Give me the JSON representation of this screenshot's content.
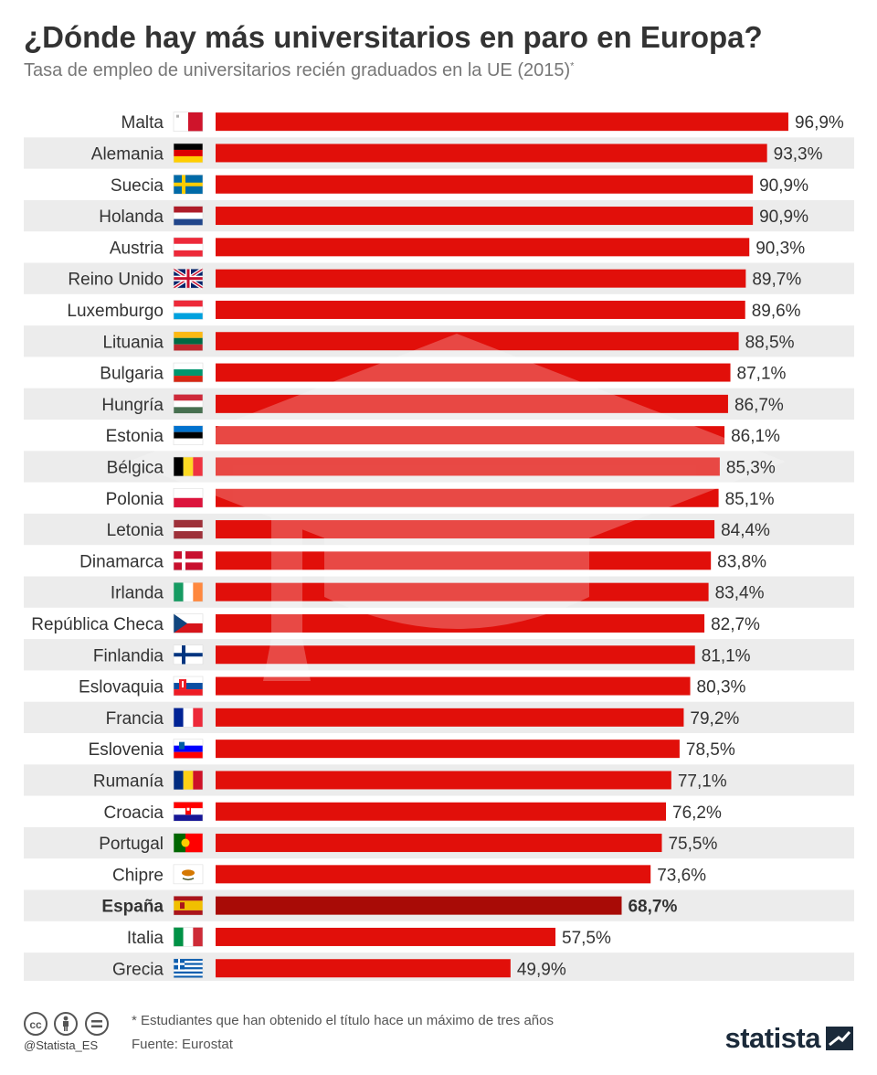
{
  "header": {
    "title": "¿Dónde hay más universitarios en paro en Europa?",
    "subtitle": "Tasa de empleo de universitarios recién graduados en la UE (2015)",
    "subtitle_mark": "*"
  },
  "chart_data": {
    "type": "bar",
    "orientation": "horizontal",
    "title": "¿Dónde hay más universitarios en paro en Europa?",
    "subtitle": "Tasa de empleo de universitarios recién graduados en la UE (2015)*",
    "categories": [
      "Malta",
      "Alemania",
      "Suecia",
      "Holanda",
      "Austria",
      "Reino Unido",
      "Luxemburgo",
      "Lituania",
      "Bulgaria",
      "Hungría",
      "Estonia",
      "Bélgica",
      "Polonia",
      "Letonia",
      "Dinamarca",
      "Irlanda",
      "República Checa",
      "Finlandia",
      "Eslovaquia",
      "Francia",
      "Eslovenia",
      "Rumanía",
      "Croacia",
      "Portugal",
      "Chipre",
      "España",
      "Italia",
      "Grecia"
    ],
    "values": [
      96.9,
      93.3,
      90.9,
      90.9,
      90.3,
      89.7,
      89.6,
      88.5,
      87.1,
      86.7,
      86.1,
      85.3,
      85.1,
      84.4,
      83.8,
      83.4,
      82.7,
      81.1,
      80.3,
      79.2,
      78.5,
      77.1,
      76.2,
      75.5,
      73.6,
      68.7,
      57.5,
      49.9
    ],
    "value_labels": [
      "96,9%",
      "93,3%",
      "90,9%",
      "90,9%",
      "90,3%",
      "89,7%",
      "89,6%",
      "88,5%",
      "87,1%",
      "86,7%",
      "86,1%",
      "85,3%",
      "85,1%",
      "84,4%",
      "83,8%",
      "83,4%",
      "82,7%",
      "81,1%",
      "80,3%",
      "79,2%",
      "78,5%",
      "77,1%",
      "76,2%",
      "75,5%",
      "73,6%",
      "68,7%",
      "57,5%",
      "49,9%"
    ],
    "flags": [
      "flag-mt-icon",
      "flag-de-icon",
      "flag-se-icon",
      "flag-nl-icon",
      "flag-at-icon",
      "flag-gb-icon",
      "flag-lu-icon",
      "flag-lt-icon",
      "flag-bg-icon",
      "flag-hu-icon",
      "flag-ee-icon",
      "flag-be-icon",
      "flag-pl-icon",
      "flag-lv-icon",
      "flag-dk-icon",
      "flag-ie-icon",
      "flag-cz-icon",
      "flag-fi-icon",
      "flag-sk-icon",
      "flag-fr-icon",
      "flag-si-icon",
      "flag-ro-icon",
      "flag-hr-icon",
      "flag-pt-icon",
      "flag-cy-icon",
      "flag-es-icon",
      "flag-it-icon",
      "flag-gr-icon"
    ],
    "highlight": "España",
    "unit": "%",
    "xlim": [
      0,
      100
    ],
    "bar_color": "#e10f0a",
    "highlight_color": "#a80b06",
    "stripe_color": "#ececec",
    "background_icon": "graduation-cap-icon"
  },
  "footer": {
    "handle": "@Statista_ES",
    "note": "* Estudiantes que han obtenido el título hace un máximo de tres años",
    "source": "Fuente: Eurostat",
    "brand": "statista",
    "license_icons": [
      "cc-icon",
      "attribution-icon",
      "no-derivatives-icon"
    ]
  }
}
